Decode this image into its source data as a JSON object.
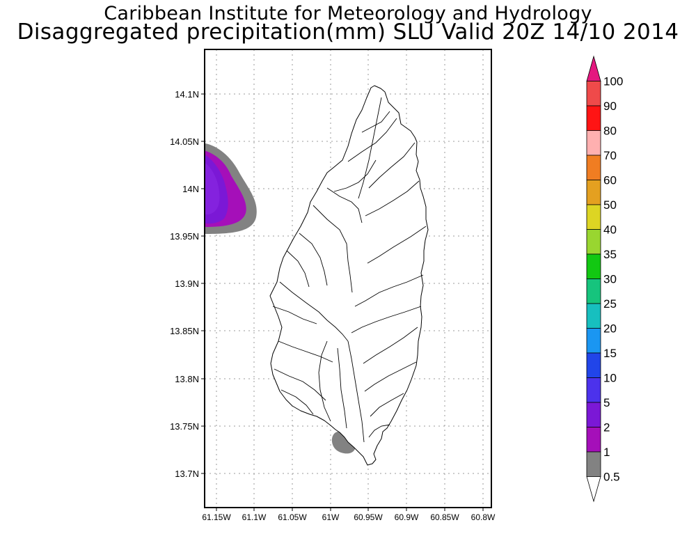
{
  "header": {
    "title": "Caribbean Institute for Meteorology and Hydrology",
    "subtitle": "Disaggregated precipitation(mm) SLU Valid 20Z 14/10 2014"
  },
  "map": {
    "region": "Saint Lucia",
    "lat_ticks": [
      "14.1N",
      "14.05N",
      "14N",
      "13.95N",
      "13.9N",
      "13.85N",
      "13.8N",
      "13.75N",
      "13.7N"
    ],
    "lon_ticks": [
      "61.15W",
      "61.1W",
      "61.05W",
      "61W",
      "60.95W",
      "60.9W",
      "60.85W",
      "60.8W"
    ],
    "gridlines": "dotted",
    "island_fill": "#ffffff",
    "outline_color": "#000000"
  },
  "legend": {
    "labels": [
      "100",
      "90",
      "80",
      "70",
      "60",
      "50",
      "40",
      "35",
      "30",
      "25",
      "20",
      "15",
      "10",
      "5",
      "2",
      "1",
      "0.5"
    ],
    "colors": [
      "#e4177f",
      "#ef4a4a",
      "#ff1414",
      "#ffb0b0",
      "#f07d22",
      "#e4a020",
      "#ddd523",
      "#99d630",
      "#12c812",
      "#16c47d",
      "#17bfbf",
      "#1a96f2",
      "#2145e9",
      "#4c32ec",
      "#7b18d6",
      "#a50fb9",
      "#828282",
      "#ffffff"
    ]
  },
  "precip_areas": [
    {
      "name": "west-offshore",
      "levels_mm": [
        "0.5",
        "1",
        "2"
      ]
    },
    {
      "name": "south-tip",
      "levels_mm": [
        "0.5"
      ]
    }
  ]
}
